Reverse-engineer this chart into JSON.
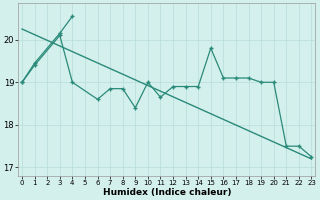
{
  "xlabel": "Humidex (Indice chaleur)",
  "line_color": "#2a8a7a",
  "bg_color": "#d4f0ec",
  "grid_color": "#b8ddd8",
  "ylim": [
    16.8,
    20.85
  ],
  "yticks": [
    17,
    18,
    19,
    20
  ],
  "xticks": [
    0,
    1,
    2,
    3,
    4,
    5,
    6,
    7,
    8,
    9,
    10,
    11,
    12,
    13,
    14,
    15,
    16,
    17,
    18,
    19,
    20,
    21,
    22,
    23
  ],
  "xlim": [
    -0.3,
    23.3
  ],
  "trend_x": [
    0,
    23
  ],
  "trend_y": [
    20.25,
    17.2
  ],
  "line1_x": [
    0,
    1,
    3,
    4
  ],
  "line1_y": [
    19.0,
    19.45,
    20.15,
    20.55
  ],
  "line2_x": [
    0,
    1,
    3,
    4,
    6,
    7,
    8,
    9,
    10,
    11,
    12,
    13,
    14,
    15,
    16,
    17,
    18,
    19,
    20,
    21,
    22,
    23
  ],
  "line2_y": [
    19.0,
    19.4,
    20.1,
    19.0,
    18.6,
    18.85,
    18.85,
    18.4,
    19.0,
    18.65,
    18.9,
    18.9,
    18.9,
    19.8,
    19.1,
    19.1,
    19.1,
    19.0,
    19.0,
    17.5,
    17.5,
    17.25
  ]
}
